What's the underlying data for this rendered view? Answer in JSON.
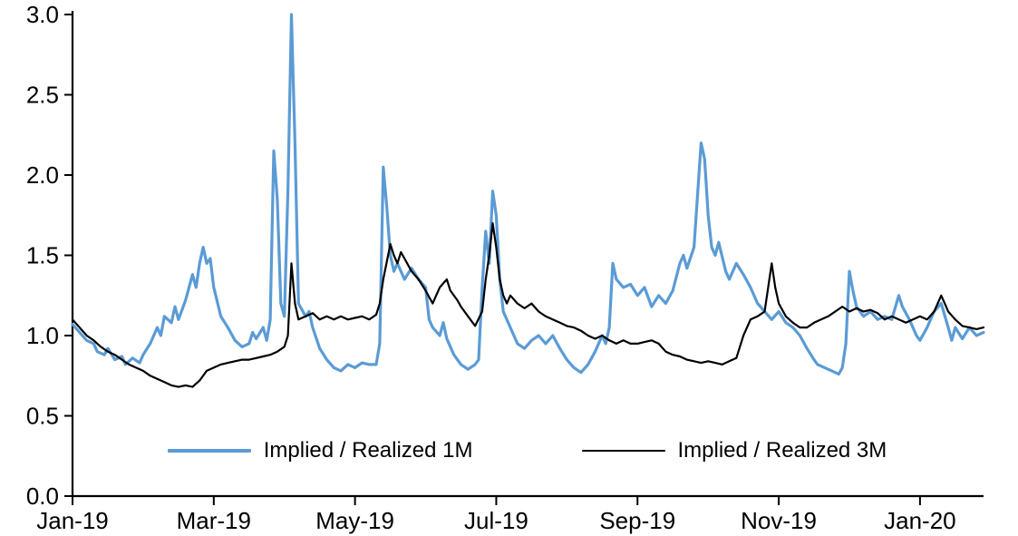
{
  "chart_data": {
    "type": "line",
    "title": "",
    "xlabel": "",
    "ylabel": "",
    "x_unit": "months since Jan-2019 (0 = Jan-19)",
    "xlim": [
      0,
      12.9
    ],
    "ylim": [
      0.0,
      3.0
    ],
    "grid": false,
    "legend_position": "inside-bottom-center",
    "background": "#ffffff",
    "axis_color": "#000000",
    "text_color": "#000000",
    "y_ticks": [
      0.0,
      0.5,
      1.0,
      1.5,
      2.0,
      2.5,
      3.0
    ],
    "x_ticks": [
      {
        "pos": 0,
        "label": "Jan-19"
      },
      {
        "pos": 2,
        "label": "Mar-19"
      },
      {
        "pos": 4,
        "label": "May-19"
      },
      {
        "pos": 6,
        "label": "Jul-19"
      },
      {
        "pos": 8,
        "label": "Sep-19"
      },
      {
        "pos": 10,
        "label": "Nov-19"
      },
      {
        "pos": 12,
        "label": "Jan-20"
      }
    ],
    "series": [
      {
        "name": "Implied / Realized 1M",
        "color": "#5B9BD5",
        "width": 3.2,
        "points": [
          [
            0.0,
            1.07
          ],
          [
            0.1,
            1.02
          ],
          [
            0.2,
            0.97
          ],
          [
            0.3,
            0.95
          ],
          [
            0.35,
            0.9
          ],
          [
            0.45,
            0.88
          ],
          [
            0.5,
            0.92
          ],
          [
            0.6,
            0.85
          ],
          [
            0.7,
            0.87
          ],
          [
            0.75,
            0.82
          ],
          [
            0.85,
            0.86
          ],
          [
            0.95,
            0.83
          ],
          [
            1.0,
            0.88
          ],
          [
            1.1,
            0.95
          ],
          [
            1.2,
            1.05
          ],
          [
            1.25,
            1.0
          ],
          [
            1.3,
            1.12
          ],
          [
            1.4,
            1.08
          ],
          [
            1.45,
            1.18
          ],
          [
            1.5,
            1.1
          ],
          [
            1.6,
            1.22
          ],
          [
            1.65,
            1.3
          ],
          [
            1.7,
            1.38
          ],
          [
            1.75,
            1.3
          ],
          [
            1.8,
            1.45
          ],
          [
            1.85,
            1.55
          ],
          [
            1.9,
            1.45
          ],
          [
            1.95,
            1.48
          ],
          [
            2.0,
            1.3
          ],
          [
            2.1,
            1.12
          ],
          [
            2.2,
            1.05
          ],
          [
            2.3,
            0.97
          ],
          [
            2.4,
            0.93
          ],
          [
            2.5,
            0.95
          ],
          [
            2.55,
            1.02
          ],
          [
            2.6,
            0.98
          ],
          [
            2.7,
            1.05
          ],
          [
            2.75,
            0.97
          ],
          [
            2.8,
            1.1
          ],
          [
            2.85,
            2.15
          ],
          [
            2.9,
            1.85
          ],
          [
            2.95,
            1.2
          ],
          [
            3.0,
            1.12
          ],
          [
            3.05,
            1.9
          ],
          [
            3.1,
            3.0
          ],
          [
            3.15,
            2.2
          ],
          [
            3.2,
            1.2
          ],
          [
            3.3,
            1.12
          ],
          [
            3.35,
            1.15
          ],
          [
            3.4,
            1.05
          ],
          [
            3.5,
            0.92
          ],
          [
            3.6,
            0.85
          ],
          [
            3.7,
            0.8
          ],
          [
            3.8,
            0.78
          ],
          [
            3.9,
            0.82
          ],
          [
            4.0,
            0.8
          ],
          [
            4.1,
            0.83
          ],
          [
            4.2,
            0.82
          ],
          [
            4.3,
            0.82
          ],
          [
            4.35,
            0.95
          ],
          [
            4.4,
            2.05
          ],
          [
            4.45,
            1.8
          ],
          [
            4.5,
            1.5
          ],
          [
            4.55,
            1.4
          ],
          [
            4.6,
            1.45
          ],
          [
            4.7,
            1.35
          ],
          [
            4.8,
            1.42
          ],
          [
            4.9,
            1.35
          ],
          [
            5.0,
            1.3
          ],
          [
            5.05,
            1.1
          ],
          [
            5.1,
            1.05
          ],
          [
            5.2,
            1.0
          ],
          [
            5.25,
            1.08
          ],
          [
            5.3,
            0.98
          ],
          [
            5.4,
            0.88
          ],
          [
            5.5,
            0.82
          ],
          [
            5.6,
            0.79
          ],
          [
            5.7,
            0.82
          ],
          [
            5.75,
            0.85
          ],
          [
            5.8,
            1.3
          ],
          [
            5.85,
            1.65
          ],
          [
            5.9,
            1.45
          ],
          [
            5.95,
            1.9
          ],
          [
            6.0,
            1.75
          ],
          [
            6.05,
            1.35
          ],
          [
            6.1,
            1.15
          ],
          [
            6.2,
            1.05
          ],
          [
            6.3,
            0.95
          ],
          [
            6.4,
            0.92
          ],
          [
            6.5,
            0.97
          ],
          [
            6.6,
            1.0
          ],
          [
            6.7,
            0.95
          ],
          [
            6.8,
            1.0
          ],
          [
            6.9,
            0.92
          ],
          [
            7.0,
            0.85
          ],
          [
            7.1,
            0.8
          ],
          [
            7.2,
            0.77
          ],
          [
            7.3,
            0.82
          ],
          [
            7.4,
            0.9
          ],
          [
            7.5,
            1.0
          ],
          [
            7.55,
            0.95
          ],
          [
            7.6,
            1.05
          ],
          [
            7.65,
            1.45
          ],
          [
            7.7,
            1.35
          ],
          [
            7.8,
            1.3
          ],
          [
            7.9,
            1.32
          ],
          [
            8.0,
            1.25
          ],
          [
            8.1,
            1.3
          ],
          [
            8.2,
            1.18
          ],
          [
            8.3,
            1.25
          ],
          [
            8.4,
            1.2
          ],
          [
            8.5,
            1.28
          ],
          [
            8.6,
            1.45
          ],
          [
            8.65,
            1.5
          ],
          [
            8.7,
            1.42
          ],
          [
            8.8,
            1.55
          ],
          [
            8.9,
            2.2
          ],
          [
            8.95,
            2.1
          ],
          [
            9.0,
            1.75
          ],
          [
            9.05,
            1.55
          ],
          [
            9.1,
            1.5
          ],
          [
            9.15,
            1.58
          ],
          [
            9.25,
            1.4
          ],
          [
            9.3,
            1.35
          ],
          [
            9.4,
            1.45
          ],
          [
            9.5,
            1.38
          ],
          [
            9.6,
            1.3
          ],
          [
            9.7,
            1.2
          ],
          [
            9.8,
            1.15
          ],
          [
            9.9,
            1.1
          ],
          [
            10.0,
            1.15
          ],
          [
            10.1,
            1.08
          ],
          [
            10.2,
            1.05
          ],
          [
            10.3,
            1.0
          ],
          [
            10.4,
            0.92
          ],
          [
            10.5,
            0.85
          ],
          [
            10.55,
            0.82
          ],
          [
            10.65,
            0.8
          ],
          [
            10.75,
            0.78
          ],
          [
            10.85,
            0.76
          ],
          [
            10.9,
            0.8
          ],
          [
            10.95,
            0.95
          ],
          [
            11.0,
            1.4
          ],
          [
            11.05,
            1.28
          ],
          [
            11.1,
            1.18
          ],
          [
            11.2,
            1.12
          ],
          [
            11.3,
            1.15
          ],
          [
            11.4,
            1.1
          ],
          [
            11.5,
            1.12
          ],
          [
            11.6,
            1.1
          ],
          [
            11.7,
            1.25
          ],
          [
            11.75,
            1.18
          ],
          [
            11.85,
            1.1
          ],
          [
            11.95,
            1.0
          ],
          [
            12.0,
            0.97
          ],
          [
            12.1,
            1.05
          ],
          [
            12.2,
            1.15
          ],
          [
            12.3,
            1.2
          ],
          [
            12.4,
            1.05
          ],
          [
            12.45,
            0.97
          ],
          [
            12.5,
            1.05
          ],
          [
            12.6,
            0.98
          ],
          [
            12.7,
            1.05
          ],
          [
            12.8,
            1.0
          ],
          [
            12.9,
            1.02
          ]
        ]
      },
      {
        "name": "Implied / Realized 3M",
        "color": "#000000",
        "width": 2.2,
        "points": [
          [
            0.0,
            1.1
          ],
          [
            0.1,
            1.05
          ],
          [
            0.2,
            1.0
          ],
          [
            0.3,
            0.97
          ],
          [
            0.4,
            0.93
          ],
          [
            0.5,
            0.9
          ],
          [
            0.6,
            0.88
          ],
          [
            0.7,
            0.85
          ],
          [
            0.8,
            0.82
          ],
          [
            0.9,
            0.8
          ],
          [
            1.0,
            0.78
          ],
          [
            1.1,
            0.75
          ],
          [
            1.2,
            0.73
          ],
          [
            1.3,
            0.71
          ],
          [
            1.4,
            0.69
          ],
          [
            1.5,
            0.68
          ],
          [
            1.6,
            0.69
          ],
          [
            1.7,
            0.68
          ],
          [
            1.8,
            0.72
          ],
          [
            1.9,
            0.78
          ],
          [
            2.0,
            0.8
          ],
          [
            2.1,
            0.82
          ],
          [
            2.2,
            0.83
          ],
          [
            2.3,
            0.84
          ],
          [
            2.4,
            0.85
          ],
          [
            2.5,
            0.85
          ],
          [
            2.6,
            0.86
          ],
          [
            2.7,
            0.87
          ],
          [
            2.8,
            0.88
          ],
          [
            2.9,
            0.9
          ],
          [
            3.0,
            0.93
          ],
          [
            3.05,
            1.0
          ],
          [
            3.1,
            1.45
          ],
          [
            3.15,
            1.2
          ],
          [
            3.2,
            1.1
          ],
          [
            3.3,
            1.12
          ],
          [
            3.4,
            1.14
          ],
          [
            3.5,
            1.1
          ],
          [
            3.6,
            1.12
          ],
          [
            3.7,
            1.1
          ],
          [
            3.8,
            1.12
          ],
          [
            3.9,
            1.1
          ],
          [
            4.0,
            1.11
          ],
          [
            4.1,
            1.12
          ],
          [
            4.2,
            1.1
          ],
          [
            4.3,
            1.13
          ],
          [
            4.35,
            1.2
          ],
          [
            4.4,
            1.35
          ],
          [
            4.5,
            1.57
          ],
          [
            4.55,
            1.5
          ],
          [
            4.6,
            1.45
          ],
          [
            4.65,
            1.52
          ],
          [
            4.7,
            1.48
          ],
          [
            4.8,
            1.4
          ],
          [
            4.9,
            1.35
          ],
          [
            5.0,
            1.28
          ],
          [
            5.1,
            1.2
          ],
          [
            5.2,
            1.3
          ],
          [
            5.3,
            1.35
          ],
          [
            5.35,
            1.28
          ],
          [
            5.45,
            1.22
          ],
          [
            5.5,
            1.18
          ],
          [
            5.6,
            1.12
          ],
          [
            5.7,
            1.06
          ],
          [
            5.8,
            1.15
          ],
          [
            5.85,
            1.35
          ],
          [
            5.9,
            1.5
          ],
          [
            5.95,
            1.7
          ],
          [
            6.0,
            1.55
          ],
          [
            6.05,
            1.35
          ],
          [
            6.1,
            1.25
          ],
          [
            6.15,
            1.2
          ],
          [
            6.2,
            1.25
          ],
          [
            6.3,
            1.2
          ],
          [
            6.4,
            1.17
          ],
          [
            6.5,
            1.2
          ],
          [
            6.6,
            1.15
          ],
          [
            6.7,
            1.12
          ],
          [
            6.8,
            1.1
          ],
          [
            6.9,
            1.08
          ],
          [
            7.0,
            1.06
          ],
          [
            7.1,
            1.05
          ],
          [
            7.2,
            1.03
          ],
          [
            7.3,
            1.0
          ],
          [
            7.4,
            0.98
          ],
          [
            7.5,
            1.0
          ],
          [
            7.6,
            0.97
          ],
          [
            7.7,
            0.95
          ],
          [
            7.8,
            0.97
          ],
          [
            7.9,
            0.95
          ],
          [
            8.0,
            0.95
          ],
          [
            8.1,
            0.96
          ],
          [
            8.2,
            0.97
          ],
          [
            8.3,
            0.95
          ],
          [
            8.4,
            0.9
          ],
          [
            8.5,
            0.88
          ],
          [
            8.6,
            0.87
          ],
          [
            8.7,
            0.85
          ],
          [
            8.8,
            0.84
          ],
          [
            8.9,
            0.83
          ],
          [
            9.0,
            0.84
          ],
          [
            9.1,
            0.83
          ],
          [
            9.2,
            0.82
          ],
          [
            9.3,
            0.84
          ],
          [
            9.4,
            0.86
          ],
          [
            9.5,
            1.0
          ],
          [
            9.6,
            1.1
          ],
          [
            9.7,
            1.12
          ],
          [
            9.8,
            1.15
          ],
          [
            9.85,
            1.3
          ],
          [
            9.9,
            1.45
          ],
          [
            9.95,
            1.3
          ],
          [
            10.0,
            1.2
          ],
          [
            10.1,
            1.12
          ],
          [
            10.2,
            1.08
          ],
          [
            10.3,
            1.05
          ],
          [
            10.4,
            1.05
          ],
          [
            10.5,
            1.08
          ],
          [
            10.6,
            1.1
          ],
          [
            10.7,
            1.12
          ],
          [
            10.8,
            1.15
          ],
          [
            10.9,
            1.18
          ],
          [
            11.0,
            1.15
          ],
          [
            11.1,
            1.17
          ],
          [
            11.2,
            1.15
          ],
          [
            11.3,
            1.16
          ],
          [
            11.4,
            1.14
          ],
          [
            11.5,
            1.1
          ],
          [
            11.6,
            1.12
          ],
          [
            11.7,
            1.1
          ],
          [
            11.8,
            1.08
          ],
          [
            11.9,
            1.1
          ],
          [
            12.0,
            1.12
          ],
          [
            12.1,
            1.1
          ],
          [
            12.2,
            1.15
          ],
          [
            12.3,
            1.25
          ],
          [
            12.35,
            1.2
          ],
          [
            12.4,
            1.15
          ],
          [
            12.5,
            1.1
          ],
          [
            12.6,
            1.06
          ],
          [
            12.7,
            1.05
          ],
          [
            12.8,
            1.04
          ],
          [
            12.9,
            1.05
          ]
        ]
      }
    ]
  },
  "legend": {
    "items": [
      {
        "label": "Implied / Realized 1M"
      },
      {
        "label": "Implied / Realized 3M"
      }
    ]
  }
}
